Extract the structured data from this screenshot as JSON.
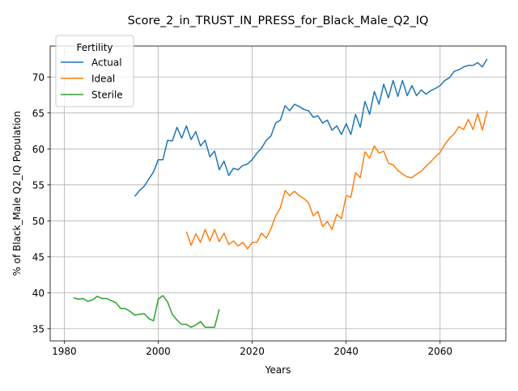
{
  "chart_data": {
    "type": "line",
    "title": "Score_2_in_TRUST_IN_PRESS_for_Black_Male_Q2_IQ",
    "xlabel": "Years",
    "ylabel": "% of Black_Male Q2_IQ Population",
    "xlim": [
      1977,
      2074
    ],
    "ylim": [
      33.3,
      74.3
    ],
    "xticks": [
      1980,
      2000,
      2020,
      2040,
      2060
    ],
    "yticks": [
      35,
      40,
      45,
      50,
      55,
      60,
      65,
      70
    ],
    "grid": true,
    "legend": {
      "title": "Fertility",
      "position": "upper-left"
    },
    "series": [
      {
        "name": "Actual",
        "color": "#1f77b4",
        "x": [
          1995,
          1996,
          1997,
          1998,
          1999,
          2000,
          2001,
          2002,
          2003,
          2004,
          2005,
          2006,
          2007,
          2008,
          2009,
          2010,
          2011,
          2012,
          2013,
          2014,
          2015,
          2016,
          2017,
          2018,
          2019,
          2020,
          2021,
          2022,
          2023,
          2024,
          2025,
          2026,
          2027,
          2028,
          2029,
          2030,
          2031,
          2032,
          2033,
          2034,
          2035,
          2036,
          2037,
          2038,
          2039,
          2040,
          2041,
          2042,
          2043,
          2044,
          2045,
          2046,
          2047,
          2048,
          2049,
          2050,
          2051,
          2052,
          2053,
          2054,
          2055,
          2056,
          2057,
          2058,
          2059,
          2060,
          2061,
          2062,
          2063,
          2064,
          2065,
          2066,
          2067,
          2068,
          2069,
          2070
        ],
        "y": [
          53.4,
          54.2,
          54.8,
          55.8,
          56.8,
          58.5,
          58.5,
          61.2,
          61.1,
          63.0,
          61.5,
          63.2,
          61.3,
          62.4,
          60.4,
          61.2,
          58.9,
          59.7,
          57.1,
          58.3,
          56.3,
          57.3,
          57.1,
          57.7,
          57.9,
          58.5,
          59.4,
          60.1,
          61.2,
          61.8,
          63.6,
          64.0,
          66.0,
          65.3,
          66.2,
          65.9,
          65.5,
          65.3,
          64.4,
          64.6,
          63.6,
          64.0,
          62.6,
          63.2,
          62.0,
          63.5,
          62.0,
          64.8,
          63.0,
          66.6,
          64.8,
          68.0,
          66.2,
          69.0,
          67.1,
          69.5,
          67.3,
          69.5,
          67.4,
          68.8,
          67.4,
          68.2,
          67.6,
          68.1,
          68.4,
          68.8,
          69.5,
          69.9,
          70.8,
          71.0,
          71.4,
          71.6,
          71.6,
          72.0,
          71.4,
          72.5
        ]
      },
      {
        "name": "Ideal",
        "color": "#ff7f0e",
        "x": [
          2006,
          2007,
          2008,
          2009,
          2010,
          2011,
          2012,
          2013,
          2014,
          2015,
          2016,
          2017,
          2018,
          2019,
          2020,
          2021,
          2022,
          2023,
          2024,
          2025,
          2026,
          2027,
          2028,
          2029,
          2030,
          2031,
          2032,
          2033,
          2034,
          2035,
          2036,
          2037,
          2038,
          2039,
          2040,
          2041,
          2042,
          2043,
          2044,
          2045,
          2046,
          2047,
          2048,
          2049,
          2050,
          2051,
          2052,
          2053,
          2054,
          2055,
          2056,
          2057,
          2058,
          2059,
          2060,
          2061,
          2062,
          2063,
          2064,
          2065,
          2066,
          2067,
          2068,
          2069,
          2070
        ],
        "y": [
          48.5,
          46.6,
          48.2,
          47.0,
          48.8,
          47.2,
          48.8,
          47.1,
          48.3,
          46.7,
          47.2,
          46.5,
          47.0,
          46.1,
          47.0,
          47.0,
          48.3,
          47.6,
          48.9,
          50.7,
          51.8,
          54.2,
          53.5,
          54.1,
          53.5,
          53.1,
          52.5,
          50.7,
          51.3,
          49.2,
          49.9,
          48.8,
          50.9,
          50.3,
          53.5,
          53.3,
          56.7,
          56.0,
          59.6,
          58.7,
          60.4,
          59.4,
          59.7,
          58.0,
          57.8,
          57.0,
          56.5,
          56.1,
          56.0,
          56.5,
          56.9,
          57.6,
          58.2,
          58.9,
          59.5,
          60.6,
          61.5,
          62.1,
          63.1,
          62.7,
          64.1,
          62.7,
          64.9,
          62.6,
          65.3
        ]
      },
      {
        "name": "Sterile",
        "color": "#2ca02c",
        "x": [
          1982,
          1983,
          1984,
          1985,
          1986,
          1987,
          1988,
          1989,
          1990,
          1991,
          1992,
          1993,
          1994,
          1995,
          1996,
          1997,
          1998,
          1999,
          2000,
          2001,
          2002,
          2003,
          2004,
          2005,
          2006,
          2007,
          2008,
          2009,
          2010,
          2011,
          2012,
          2013
        ],
        "y": [
          39.3,
          39.1,
          39.2,
          38.8,
          39.0,
          39.5,
          39.2,
          39.2,
          38.9,
          38.6,
          37.8,
          37.8,
          37.4,
          36.9,
          37.0,
          37.1,
          36.4,
          36.1,
          39.1,
          39.6,
          38.7,
          37.0,
          36.2,
          35.6,
          35.6,
          35.2,
          35.5,
          36.0,
          35.2,
          35.2,
          35.2,
          37.7
        ]
      }
    ]
  }
}
